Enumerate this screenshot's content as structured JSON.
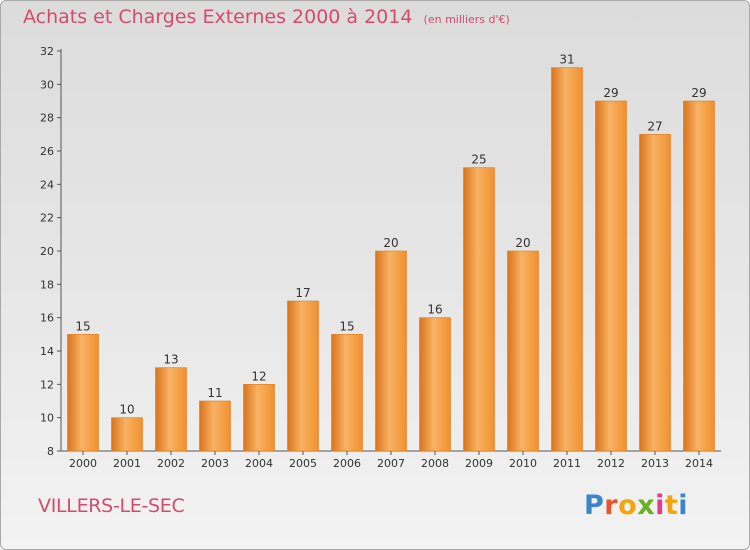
{
  "title": "Achats et Charges Externes 2000 à 2014",
  "unit": "(en milliers d'€)",
  "commune": "VILLERS-LE-SEC",
  "logo": {
    "text": "Proxiti",
    "colors": [
      "#3a86c8",
      "#e8542c",
      "#f2a50c",
      "#6ab023",
      "#e63a8c",
      "#f2a50c",
      "#3a86c8"
    ]
  },
  "colors": {
    "bar": "#f0902e",
    "bar_light": "#f8b264",
    "bar_dark": "#d9741a",
    "accent": "#d64a6e"
  },
  "chart_data": {
    "type": "bar",
    "categories": [
      "2000",
      "2001",
      "2002",
      "2003",
      "2004",
      "2005",
      "2006",
      "2007",
      "2008",
      "2009",
      "2010",
      "2011",
      "2012",
      "2013",
      "2014"
    ],
    "values": [
      15,
      10,
      13,
      11,
      12,
      17,
      15,
      20,
      16,
      25,
      20,
      31,
      29,
      27,
      29
    ],
    "title": "Achats et Charges Externes 2000 à 2014",
    "ylim": [
      8,
      32
    ],
    "yticks": [
      8,
      10,
      12,
      14,
      16,
      18,
      20,
      22,
      24,
      26,
      28,
      30,
      32
    ],
    "grid": false,
    "legend": "none"
  }
}
